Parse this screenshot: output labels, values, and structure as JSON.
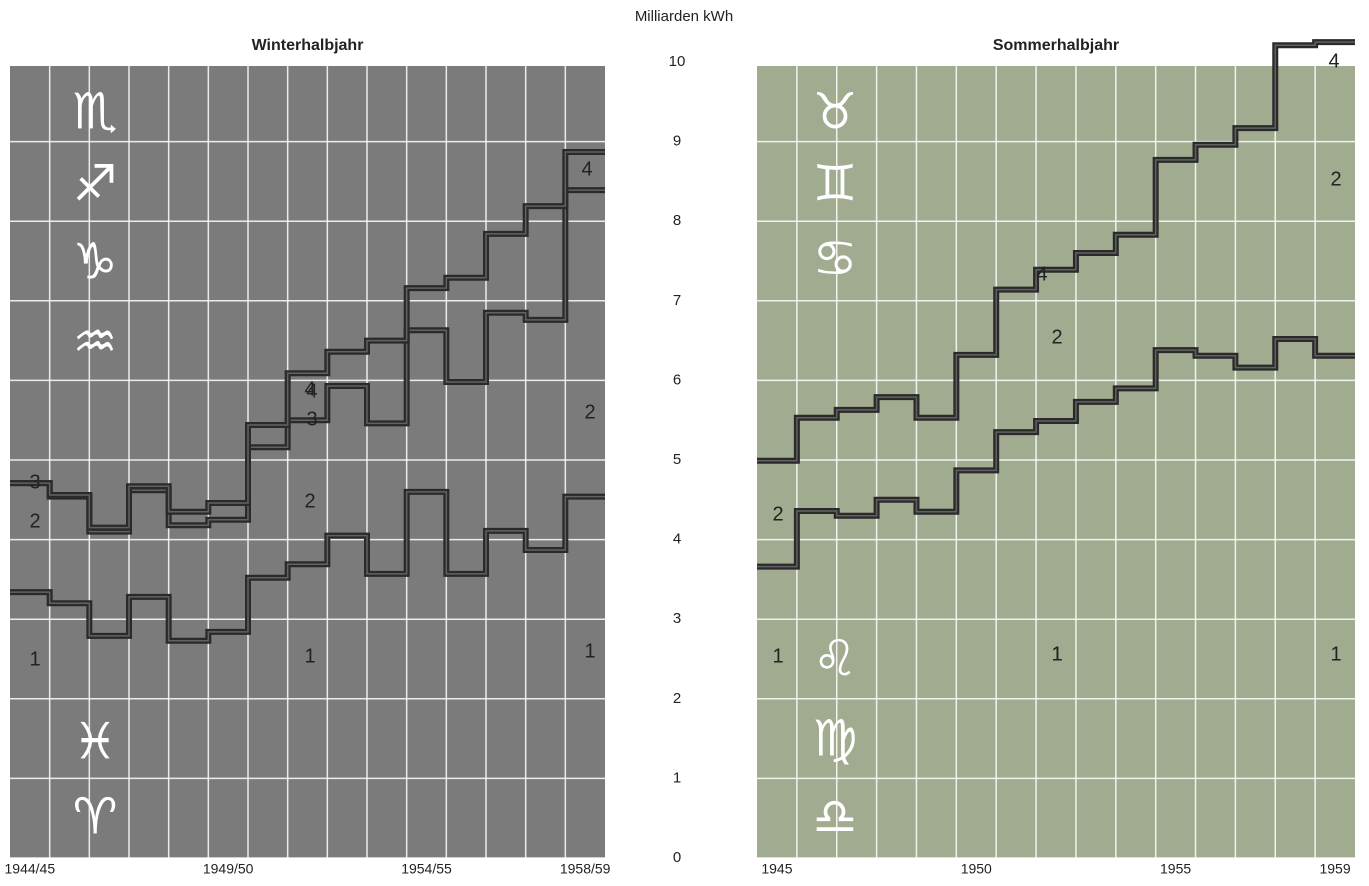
{
  "chart_data": [
    {
      "type": "step",
      "title": "Winterhalbjahr",
      "ylabel": "Milliarden kWh",
      "categories": [
        "1944/45",
        null,
        null,
        null,
        null,
        "1949/50",
        null,
        null,
        null,
        null,
        "1954/55",
        null,
        null,
        null,
        "1958/59"
      ],
      "ylim": [
        0,
        10
      ],
      "yticks": [
        0,
        1,
        2,
        3,
        4,
        5,
        6,
        7,
        8,
        9,
        10
      ],
      "grid": true,
      "background": "#7b7b7b",
      "symbols": [
        "♏",
        "♐",
        "♑",
        "♒",
        "♓",
        "♈"
      ],
      "series": [
        {
          "name": "1",
          "color": "#2a2a2a",
          "values": [
            3.34,
            3.2,
            2.79,
            3.28,
            2.73,
            2.84,
            3.52,
            3.69,
            4.05,
            3.57,
            4.6,
            3.57,
            4.11,
            3.87,
            4.54
          ]
        },
        {
          "name": "3",
          "color": "#2a2a2a",
          "values": [
            4.71,
            4.54,
            4.1,
            4.62,
            4.18,
            4.25,
            5.16,
            5.5,
            5.93,
            5.46,
            6.63,
            5.98,
            6.85,
            6.76,
            8.39
          ]
        },
        {
          "name": "4",
          "color": "#2a2a2a",
          "values": [
            4.71,
            4.56,
            4.15,
            4.67,
            4.35,
            4.46,
            5.44,
            6.09,
            6.36,
            6.5,
            7.16,
            7.29,
            7.84,
            8.19,
            8.87
          ]
        }
      ],
      "annotations": [
        "2",
        "1",
        "2",
        "1",
        "2",
        "1",
        "4",
        "3",
        "4"
      ]
    },
    {
      "type": "step",
      "title": "Sommerhalbjahr",
      "categories": [
        "1945",
        null,
        null,
        null,
        null,
        "1950",
        null,
        null,
        null,
        null,
        "1955",
        null,
        null,
        null,
        "1959"
      ],
      "ylim": [
        0,
        10
      ],
      "yticks": [
        0,
        1,
        2,
        3,
        4,
        5,
        6,
        7,
        8,
        9,
        10
      ],
      "grid": true,
      "background": "#a0ab90",
      "symbols": [
        "♉",
        "♊",
        "♋",
        "♌",
        "♍",
        "♎"
      ],
      "series": [
        {
          "name": "1",
          "color": "#2a2a2a",
          "values": [
            3.66,
            4.36,
            4.3,
            4.5,
            4.35,
            4.87,
            5.35,
            5.49,
            5.73,
            5.9,
            6.38,
            6.31,
            6.16,
            6.52,
            6.31
          ]
        },
        {
          "name": "4",
          "color": "#2a2a2a",
          "values": [
            4.99,
            5.53,
            5.63,
            5.79,
            5.53,
            6.32,
            7.14,
            7.39,
            7.6,
            7.83,
            8.77,
            8.96,
            9.17,
            10.21,
            10.25
          ]
        }
      ],
      "annotations": [
        "2",
        "1",
        "2",
        "1",
        "2",
        "1",
        "4"
      ]
    }
  ]
}
